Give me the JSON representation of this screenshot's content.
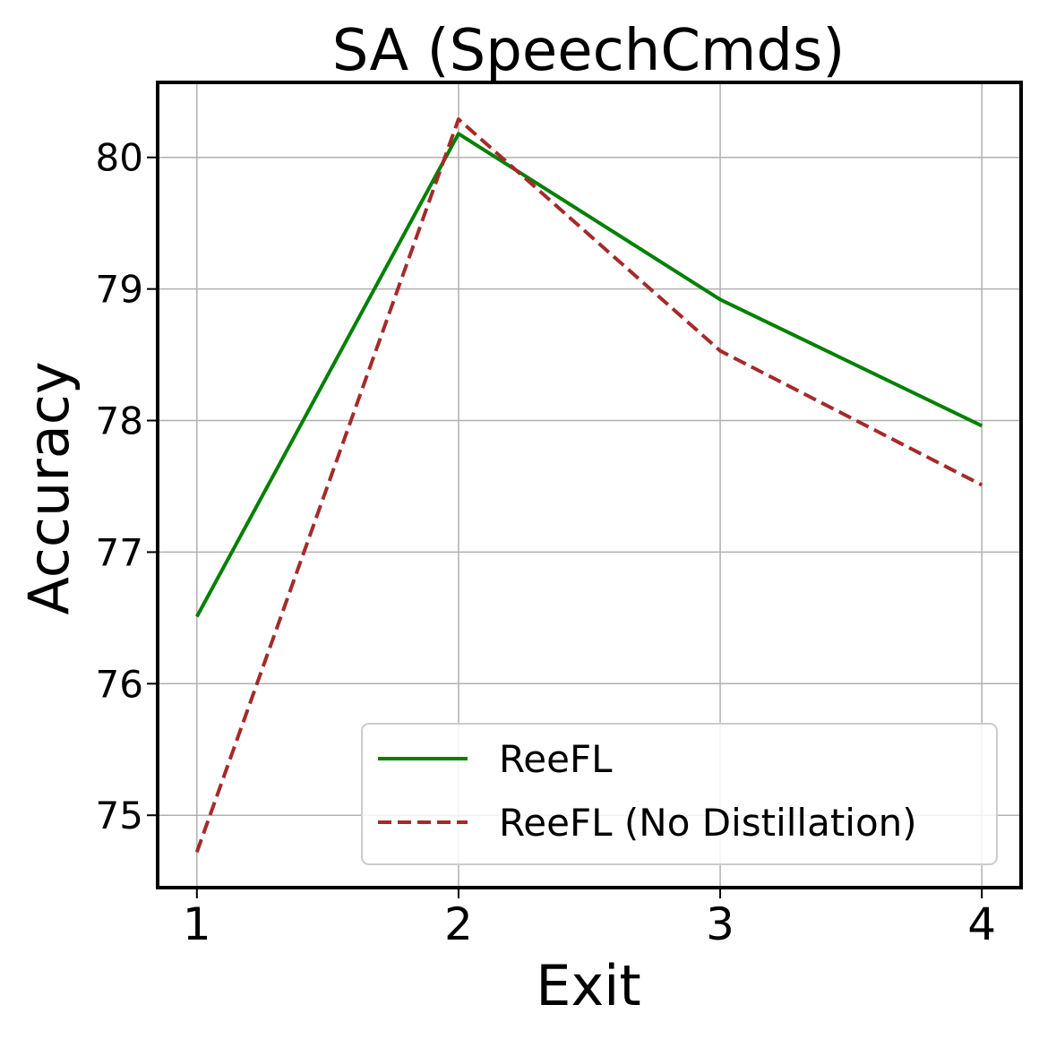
{
  "chart_data": {
    "type": "line",
    "title": "SA (SpeechCmds)",
    "xlabel": "Exit",
    "ylabel": "Accuracy",
    "x": [
      1,
      2,
      3,
      4
    ],
    "xlim": [
      0.85,
      4.15
    ],
    "ylim": [
      74.45,
      80.57
    ],
    "yticks": [
      75,
      76,
      77,
      78,
      79,
      80
    ],
    "grid": true,
    "legend_position": "lower-right",
    "series": [
      {
        "name": "ReeFL",
        "values": [
          76.51,
          80.18,
          78.92,
          77.96
        ],
        "color": "#008000",
        "dash": "solid"
      },
      {
        "name": "ReeFL (No Distillation)",
        "values": [
          74.72,
          80.29,
          78.53,
          77.51
        ],
        "color": "#a52a2a",
        "dash": "dashed"
      }
    ]
  }
}
